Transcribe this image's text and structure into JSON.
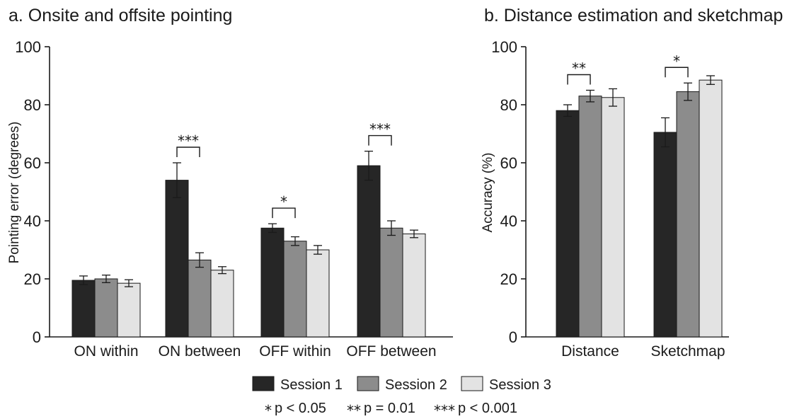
{
  "colors": {
    "session1": "#262626",
    "session2": "#8c8c8c",
    "session3": "#e3e3e3",
    "axis": "#1a1a1a"
  },
  "legend": {
    "entries": [
      "Session 1",
      "Session 2",
      "Session 3"
    ],
    "significance": [
      {
        "stars": "*",
        "text": "p < 0.05"
      },
      {
        "stars": "**",
        "text": "p = 0.01"
      },
      {
        "stars": "***",
        "text": "p < 0.001"
      }
    ]
  },
  "chart_data": [
    {
      "type": "bar",
      "title": "a. Onsite and offsite pointing",
      "xlabel": "",
      "ylabel": "Pointing error (degrees)",
      "ylim": [
        0,
        100
      ],
      "yticks": [
        "0",
        "20",
        "40",
        "60",
        "80",
        "100"
      ],
      "categories": [
        "ON within",
        "ON between",
        "OFF within",
        "OFF between"
      ],
      "series": [
        {
          "name": "Session 1",
          "values": [
            19.5,
            54,
            37.5,
            59
          ],
          "error": [
            1.5,
            6,
            1.5,
            5
          ]
        },
        {
          "name": "Session 2",
          "values": [
            20,
            26.5,
            33,
            37.5
          ],
          "error": [
            1.3,
            2.5,
            1.5,
            2.5
          ]
        },
        {
          "name": "Session 3",
          "values": [
            18.5,
            23,
            30,
            35.5
          ],
          "error": [
            1.2,
            1.2,
            1.5,
            1.3
          ]
        }
      ],
      "significance": [
        {
          "category": "ON between",
          "label": "***"
        },
        {
          "category": "OFF within",
          "label": "*"
        },
        {
          "category": "OFF between",
          "label": "***"
        }
      ],
      "grid": false,
      "legend_position": "bottom-center"
    },
    {
      "type": "bar",
      "title": "b. Distance estimation and sketchmap",
      "xlabel": "",
      "ylabel": "Accuracy (%)",
      "ylim": [
        0,
        100
      ],
      "yticks": [
        "0",
        "20",
        "40",
        "60",
        "80",
        "100"
      ],
      "categories": [
        "Distance",
        "Sketchmap"
      ],
      "series": [
        {
          "name": "Session 1",
          "values": [
            78,
            70.5
          ],
          "error": [
            2,
            5
          ]
        },
        {
          "name": "Session 2",
          "values": [
            83,
            84.5
          ],
          "error": [
            2,
            3
          ]
        },
        {
          "name": "Session 3",
          "values": [
            82.5,
            88.5
          ],
          "error": [
            3,
            1.5
          ]
        }
      ],
      "significance": [
        {
          "category": "Distance",
          "label": "**"
        },
        {
          "category": "Sketchmap",
          "label": "*"
        }
      ],
      "grid": false,
      "legend_position": "bottom-center"
    }
  ]
}
